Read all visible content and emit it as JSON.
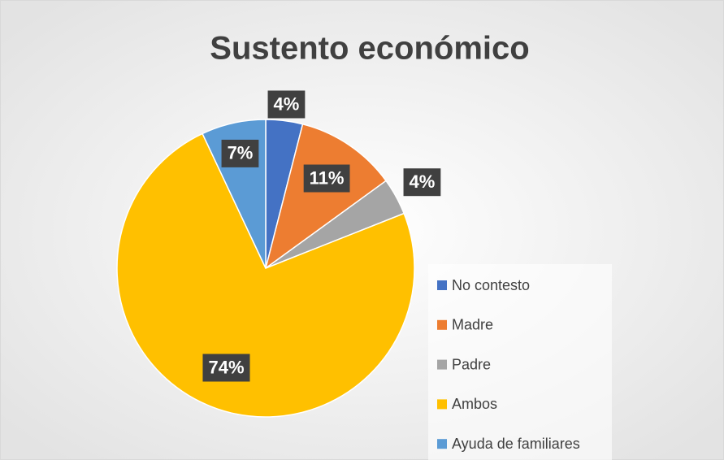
{
  "chart_data": {
    "type": "pie",
    "title": "Sustento económico",
    "categories": [
      "No contesto",
      "Madre",
      "Padre",
      "Ambos",
      "Ayuda de familiares"
    ],
    "values": [
      4,
      11,
      4,
      74,
      7
    ],
    "value_labels": [
      "4%",
      "11%",
      "4%",
      "74%",
      "7%"
    ],
    "colors": [
      "#4472c4",
      "#ed7d31",
      "#a5a5a5",
      "#ffc000",
      "#5b9bd5"
    ],
    "legend": "right"
  }
}
